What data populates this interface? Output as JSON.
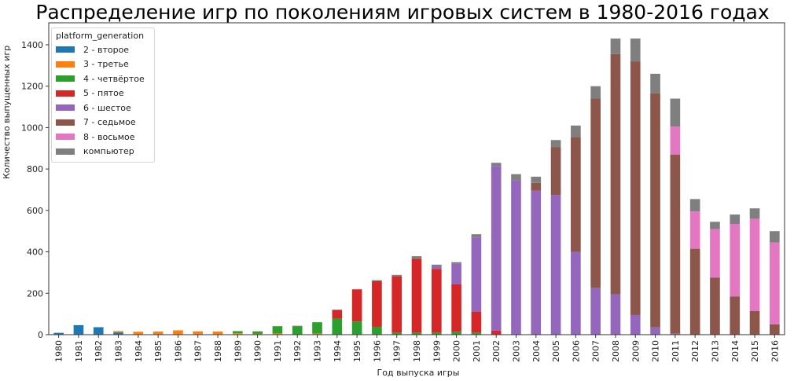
{
  "chart_data": {
    "type": "bar",
    "stacked": true,
    "title": "Распределение игр по поколениям игровых систем в 1980-2016 годах",
    "xlabel": "Год выпуска игры",
    "ylabel": "Количество выпущенных игр",
    "ylim": [
      0,
      1500
    ],
    "yticks": [
      0,
      200,
      400,
      600,
      800,
      1000,
      1200,
      1400
    ],
    "grid": false,
    "legend_position": "upper left",
    "legend_title": "platform_generation",
    "categories": [
      "1980",
      "1981",
      "1982",
      "1983",
      "1984",
      "1985",
      "1986",
      "1987",
      "1988",
      "1989",
      "1990",
      "1991",
      "1992",
      "1993",
      "1994",
      "1995",
      "1996",
      "1997",
      "1998",
      "1999",
      "2000",
      "2001",
      "2002",
      "2003",
      "2004",
      "2005",
      "2006",
      "2007",
      "2008",
      "2009",
      "2010",
      "2011",
      "2012",
      "2013",
      "2014",
      "2015",
      "2016"
    ],
    "series": [
      {
        "name": "2 - второе",
        "color": "#1f77b4",
        "values": [
          9,
          46,
          36,
          11,
          0,
          0,
          0,
          3,
          1,
          0,
          0,
          0,
          0,
          0,
          0,
          0,
          0,
          0,
          0,
          0,
          0,
          0,
          0,
          0,
          0,
          0,
          0,
          0,
          0,
          0,
          0,
          0,
          0,
          0,
          0,
          0,
          0
        ]
      },
      {
        "name": "3 - третье",
        "color": "#ff7f0e",
        "values": [
          0,
          0,
          0,
          6,
          14,
          13,
          21,
          13,
          14,
          7,
          4,
          6,
          0,
          5,
          0,
          0,
          0,
          0,
          0,
          0,
          0,
          0,
          0,
          0,
          0,
          0,
          0,
          0,
          0,
          0,
          0,
          0,
          0,
          0,
          0,
          0,
          0
        ]
      },
      {
        "name": "4 - четвёртое",
        "color": "#2ca02c",
        "values": [
          0,
          0,
          0,
          0,
          0,
          0,
          0,
          0,
          0,
          10,
          12,
          35,
          40,
          55,
          78,
          64,
          38,
          10,
          10,
          10,
          14,
          10,
          0,
          0,
          0,
          0,
          0,
          0,
          0,
          0,
          0,
          0,
          0,
          0,
          0,
          0,
          0
        ]
      },
      {
        "name": "5 - пятое",
        "color": "#d62728",
        "values": [
          0,
          0,
          0,
          0,
          0,
          0,
          0,
          0,
          0,
          0,
          0,
          0,
          0,
          0,
          40,
          155,
          220,
          272,
          357,
          308,
          229,
          100,
          20,
          0,
          0,
          0,
          0,
          0,
          0,
          0,
          0,
          0,
          0,
          0,
          0,
          0,
          0
        ]
      },
      {
        "name": "6 - шестое",
        "color": "#9467bd",
        "values": [
          0,
          0,
          0,
          0,
          0,
          0,
          0,
          0,
          0,
          0,
          0,
          0,
          0,
          0,
          0,
          0,
          0,
          0,
          0,
          12,
          100,
          360,
          795,
          745,
          695,
          675,
          400,
          225,
          195,
          95,
          35,
          5,
          0,
          0,
          0,
          0,
          0
        ]
      },
      {
        "name": "7 - седьмое",
        "color": "#8c564b",
        "values": [
          0,
          0,
          0,
          0,
          0,
          1,
          0,
          0,
          0,
          0,
          0,
          0,
          0,
          0,
          0,
          0,
          0,
          0,
          0,
          0,
          0,
          0,
          0,
          0,
          38,
          230,
          555,
          915,
          1160,
          1225,
          1130,
          865,
          415,
          275,
          185,
          115,
          50
        ]
      },
      {
        "name": "8 - восьмое",
        "color": "#e377c2",
        "values": [
          0,
          0,
          0,
          0,
          0,
          0,
          0,
          0,
          0,
          0,
          0,
          0,
          0,
          0,
          0,
          0,
          0,
          0,
          0,
          0,
          0,
          0,
          0,
          0,
          0,
          0,
          0,
          0,
          0,
          0,
          0,
          135,
          180,
          235,
          350,
          445,
          395
        ]
      },
      {
        "name": "компьютер",
        "color": "#7f7f7f",
        "values": [
          0,
          0,
          0,
          0,
          0,
          1,
          0,
          0,
          0,
          0,
          0,
          0,
          3,
          0,
          3,
          0,
          5,
          7,
          12,
          8,
          7,
          15,
          15,
          30,
          30,
          35,
          55,
          60,
          75,
          110,
          95,
          135,
          60,
          35,
          45,
          50,
          55
        ]
      }
    ]
  }
}
